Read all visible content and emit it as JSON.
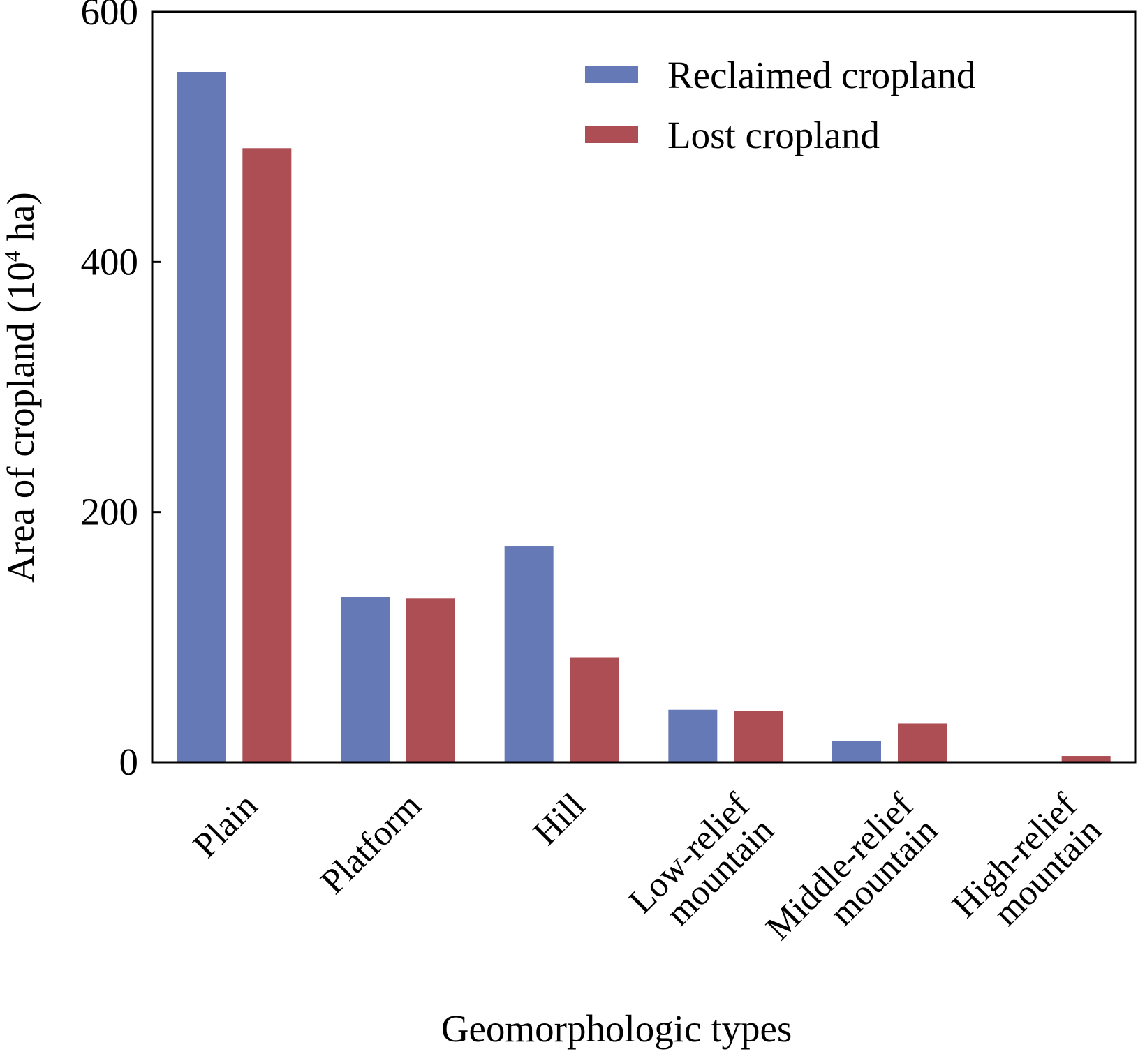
{
  "chart_data": {
    "type": "bar",
    "title": "",
    "xlabel": "Geomorphologic types",
    "ylabel": {
      "prefix": "Area of cropland (10",
      "superscript": "4",
      "suffix": " ha)"
    },
    "ylim": [
      0,
      600
    ],
    "yticks": [
      0,
      200,
      400,
      600
    ],
    "grid": false,
    "legend_position": "top-right",
    "categories": [
      [
        "Plain"
      ],
      [
        "Platform"
      ],
      [
        "Hill"
      ],
      [
        "Low-relief",
        "mountain"
      ],
      [
        "Middle-relief",
        "mountain"
      ],
      [
        "High-relief",
        "mountain"
      ]
    ],
    "series": [
      {
        "name": "Reclaimed cropland",
        "color": "#6479b5",
        "values": [
          552,
          132,
          173,
          42,
          17,
          0
        ]
      },
      {
        "name": "Lost cropland",
        "color": "#ac4e53",
        "values": [
          491,
          131,
          84,
          41,
          31,
          5
        ]
      }
    ]
  }
}
